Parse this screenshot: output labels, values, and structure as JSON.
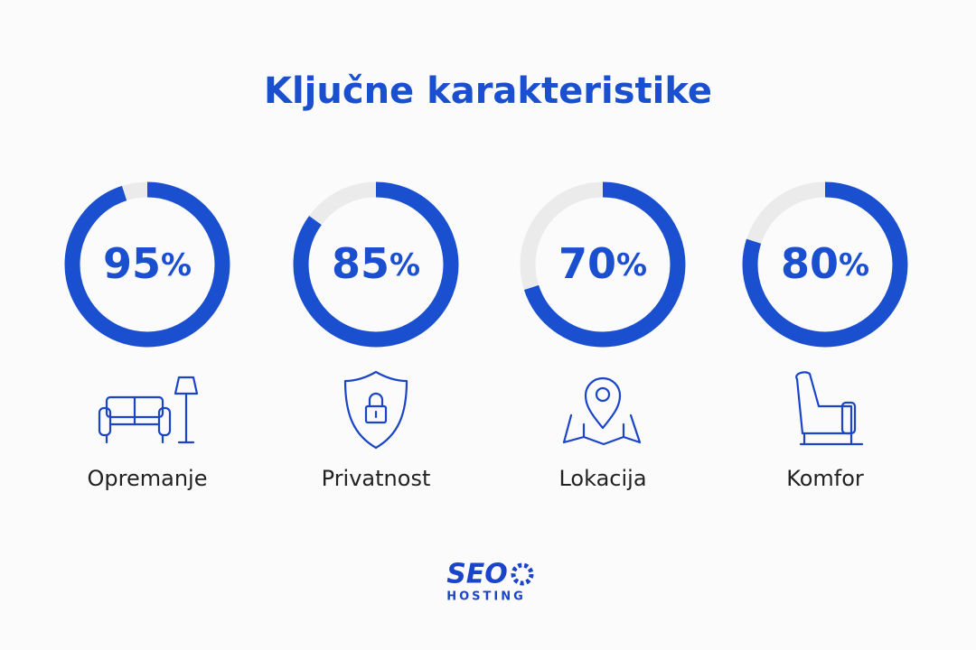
{
  "chart_data": {
    "type": "gauge",
    "title": "Ključne karakteristike",
    "categories": [
      "Opremanje",
      "Privatnost",
      "Lokacija",
      "Komfor"
    ],
    "values": [
      95,
      85,
      70,
      80
    ],
    "value_labels": [
      "95%",
      "85%",
      "70%",
      "80%"
    ],
    "color": "#1a4fd0",
    "track_color": "#ebebeb"
  },
  "logo": {
    "name": "SEO",
    "subtitle": "HOSTING"
  }
}
